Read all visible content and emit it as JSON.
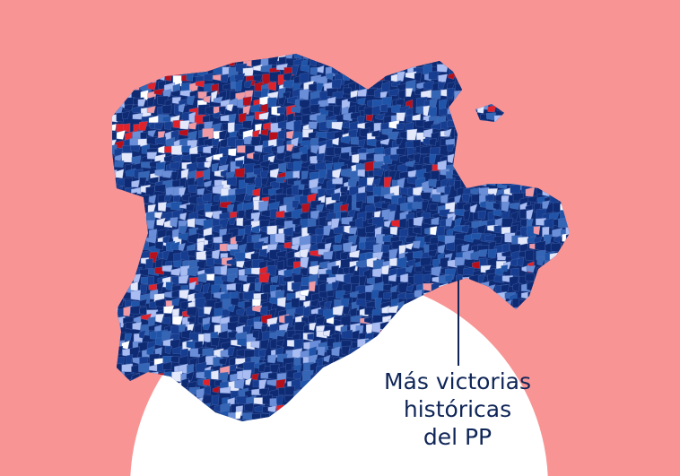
{
  "background_color": "#f99494",
  "circle_color": "#ffffff",
  "annotation": {
    "line1": "Más victorias",
    "line2": "históricas",
    "line3": "del PP",
    "color": "#0f2557"
  },
  "map_palette": {
    "blues": [
      "#0d2a73",
      "#0d2a73",
      "#0d2a73",
      "#163d8f",
      "#163d8f",
      "#1f54a8",
      "#3565b5",
      "#6a8fd8",
      "#a9bdf2",
      "#e3e8fb"
    ],
    "reds": [
      "#b8101b",
      "#e0232b",
      "#f19aa3",
      "#ffffff"
    ]
  }
}
